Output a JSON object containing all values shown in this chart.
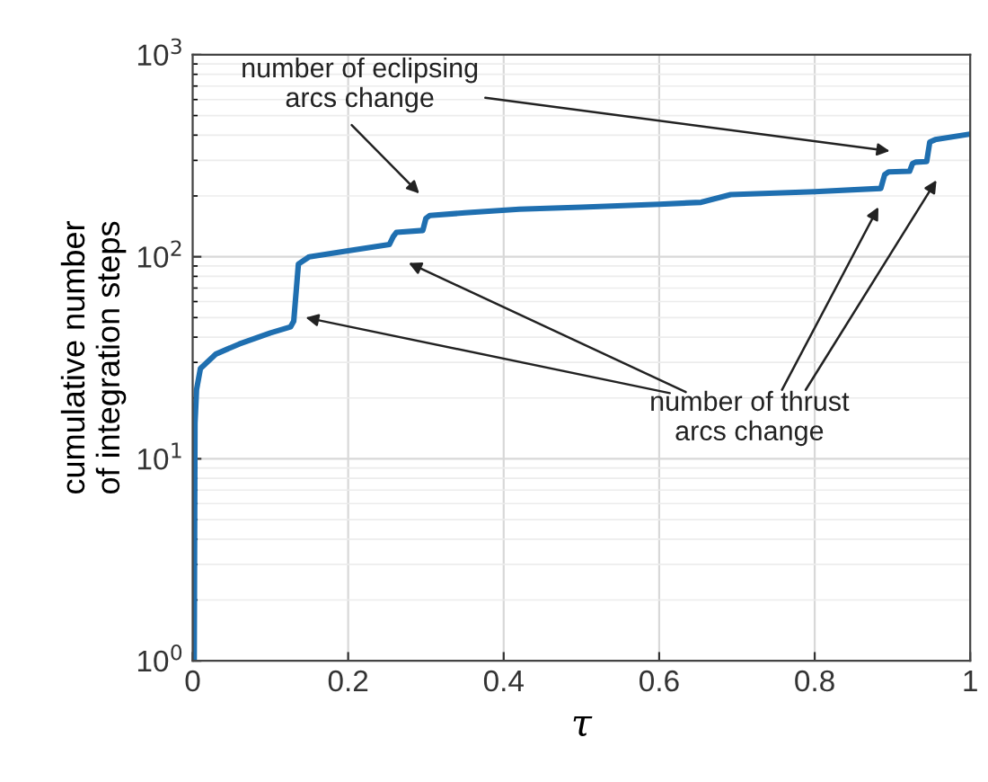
{
  "chart_data": {
    "type": "line",
    "xlabel": "τ",
    "ylabel": "cumulative number\nof integration steps",
    "log": "y",
    "grid": true,
    "xlim": [
      0,
      1
    ],
    "ylim": [
      1,
      1000
    ],
    "xticks": [
      0,
      0.2,
      0.4,
      0.6,
      0.8,
      1
    ],
    "yticks": [
      {
        "value": 1,
        "label": "10$^{0}$"
      },
      {
        "value": 10,
        "label": "10$^{1}$"
      },
      {
        "value": 100,
        "label": "10$^{2}$"
      },
      {
        "value": 1000,
        "label": "10$^{3}$"
      }
    ],
    "annotations": [
      "number of eclipsing\narcs change",
      "number of thrust\narcs change"
    ],
    "series": [
      {
        "color": "#1f6fb0",
        "x": [
          0,
          0.002,
          0.003,
          0.005,
          0.01,
          0.03,
          0.06,
          0.1,
          0.126,
          0.13,
          0.136,
          0.15,
          0.2,
          0.253,
          0.258,
          0.262,
          0.296,
          0.3,
          0.305,
          0.35,
          0.42,
          0.5,
          0.6,
          0.654,
          0.692,
          0.8,
          0.885,
          0.89,
          0.895,
          0.922,
          0.926,
          0.93,
          0.944,
          0.948,
          0.955,
          1
        ],
        "values": [
          1,
          1,
          15,
          22,
          28,
          33,
          37,
          42,
          45,
          48,
          92,
          100,
          107,
          115,
          126,
          132,
          135,
          155,
          160,
          165,
          172,
          176,
          182,
          186,
          203,
          210,
          218,
          255,
          263,
          265,
          290,
          294,
          296,
          370,
          380,
          405
        ]
      }
    ]
  }
}
